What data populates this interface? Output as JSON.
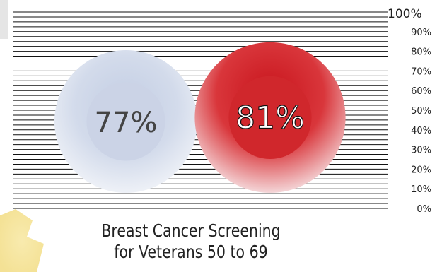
{
  "chart_data": {
    "type": "bar",
    "categories": [
      "",
      ""
    ],
    "values": [
      77,
      81
    ],
    "value_labels": [
      "77%",
      "81%"
    ],
    "colors": [
      "#cdd6e8",
      "#d0272c"
    ],
    "ylim": [
      0,
      100
    ],
    "yticks": [
      "0%",
      "10%",
      "20%",
      "30%",
      "40%",
      "50%",
      "60%",
      "70%",
      "80%",
      "90%",
      "100%"
    ],
    "grid": true,
    "title_line1": "Breast Cancer Screening",
    "title_line2": "for Veterans 50 to 69"
  }
}
